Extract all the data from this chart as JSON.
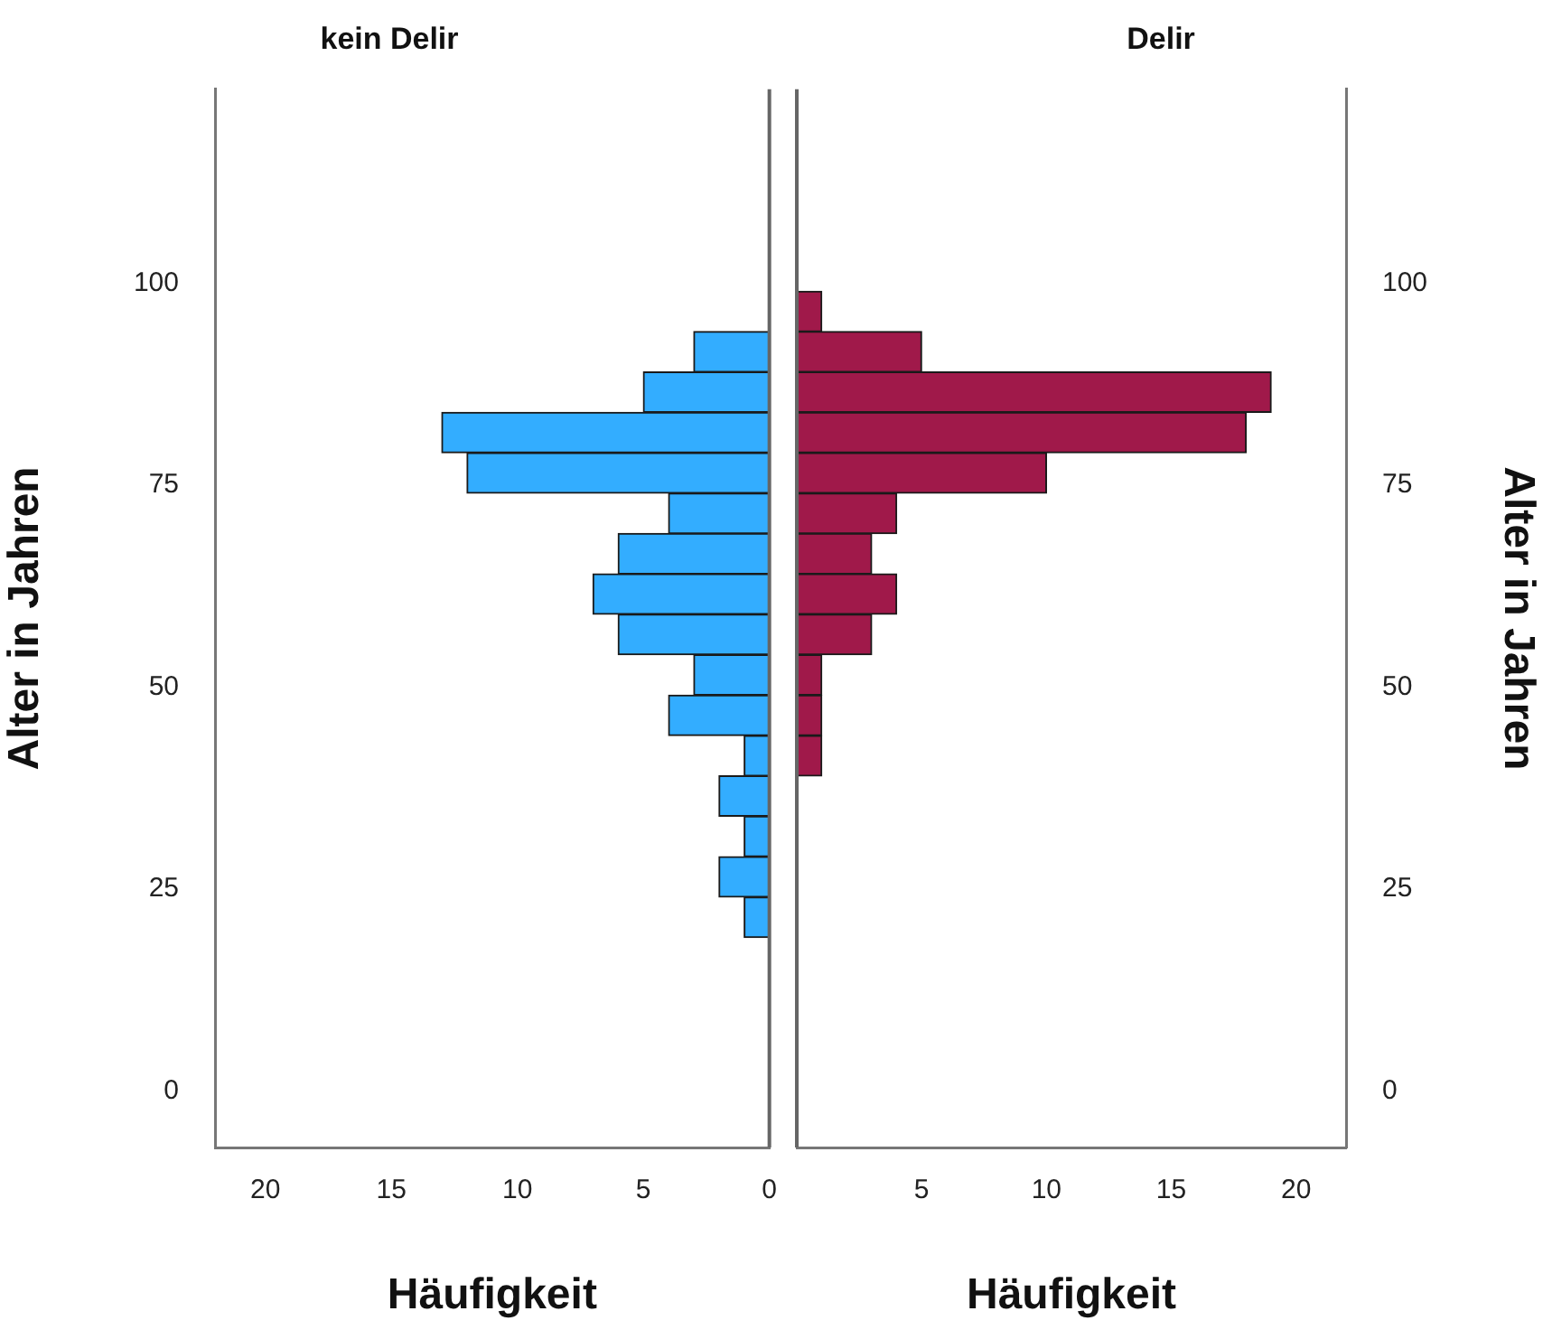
{
  "chart_data": [
    {
      "type": "histogram",
      "orientation": "horizontal",
      "title": "kein Delir",
      "xlabel": "Häufigkeit",
      "ylabel": "Alter in Jahren",
      "bins": [
        19,
        24,
        29,
        34,
        39,
        44,
        49,
        54,
        59,
        64,
        69,
        74,
        79,
        84,
        89,
        94,
        99
      ],
      "values": [
        1,
        2,
        1,
        2,
        1,
        4,
        3,
        6,
        7,
        6,
        4,
        12,
        13,
        5,
        3,
        0
      ],
      "color": "#33adff",
      "xlim": [
        22,
        0
      ],
      "xticks": [
        20,
        15,
        10,
        5,
        0
      ],
      "ylim": [
        -7,
        124
      ],
      "yticks": [
        0,
        25,
        50,
        75,
        100
      ]
    },
    {
      "type": "histogram",
      "orientation": "horizontal",
      "title": "Delir",
      "xlabel": "Häufigkeit",
      "ylabel": "Alter in Jahren",
      "bins": [
        19,
        24,
        29,
        34,
        39,
        44,
        49,
        54,
        59,
        64,
        69,
        74,
        79,
        84,
        89,
        94,
        99
      ],
      "values": [
        0,
        0,
        0,
        0,
        1,
        1,
        1,
        3,
        4,
        3,
        4,
        10,
        18,
        19,
        5,
        1
      ],
      "color": "#a0194a",
      "xlim": [
        0,
        22
      ],
      "xticks": [
        {
          "value": 0,
          "label": null
        },
        5,
        10,
        15,
        20
      ],
      "ylim": [
        -7,
        124
      ],
      "yticks": [
        0,
        25,
        50,
        75,
        100
      ]
    }
  ]
}
